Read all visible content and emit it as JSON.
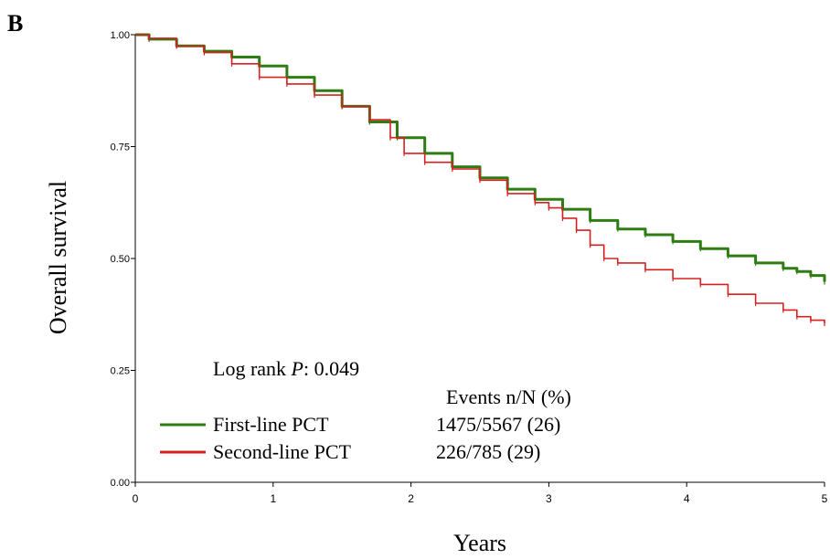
{
  "panel_label": "B",
  "chart_data": {
    "type": "line",
    "title": "",
    "xlabel": "Years",
    "ylabel": "Overall survival",
    "xlim": [
      0,
      5
    ],
    "ylim": [
      0,
      1
    ],
    "x_ticks": [
      "0",
      "1",
      "2",
      "3",
      "4",
      "5"
    ],
    "y_ticks": [
      "0.00",
      "0.25",
      "0.50",
      "0.75",
      "1.00"
    ],
    "grid": false,
    "annotation": {
      "prefix": "Log rank ",
      "p_symbol": "P",
      "suffix": ": 0.049"
    },
    "legend_header": "Events n/N (%)",
    "legend_placement": "lower-left",
    "series": [
      {
        "name": "First-line PCT",
        "events": "1475/5567 (26)",
        "color": "#2e7d12",
        "x": [
          0,
          0.1,
          0.3,
          0.5,
          0.7,
          0.9,
          1.1,
          1.3,
          1.5,
          1.7,
          1.9,
          2.1,
          2.3,
          2.5,
          2.7,
          2.9,
          3.1,
          3.3,
          3.5,
          3.7,
          3.9,
          4.1,
          4.3,
          4.5,
          4.7,
          4.8,
          4.9,
          5.0
        ],
        "y": [
          1.0,
          0.99,
          0.975,
          0.963,
          0.95,
          0.93,
          0.905,
          0.875,
          0.84,
          0.805,
          0.77,
          0.735,
          0.705,
          0.68,
          0.655,
          0.632,
          0.61,
          0.585,
          0.566,
          0.553,
          0.538,
          0.522,
          0.506,
          0.49,
          0.478,
          0.471,
          0.462,
          0.448
        ]
      },
      {
        "name": "Second-line PCT",
        "events": "226/785 (29)",
        "color": "#d62020",
        "x": [
          0,
          0.1,
          0.3,
          0.5,
          0.7,
          0.9,
          1.1,
          1.3,
          1.5,
          1.7,
          1.85,
          1.95,
          2.1,
          2.3,
          2.5,
          2.7,
          2.9,
          3.0,
          3.1,
          3.2,
          3.3,
          3.4,
          3.5,
          3.7,
          3.9,
          4.1,
          4.3,
          4.5,
          4.7,
          4.8,
          4.9,
          5.0
        ],
        "y": [
          1.0,
          0.992,
          0.975,
          0.96,
          0.935,
          0.905,
          0.89,
          0.865,
          0.84,
          0.81,
          0.77,
          0.735,
          0.715,
          0.7,
          0.675,
          0.645,
          0.625,
          0.613,
          0.59,
          0.563,
          0.53,
          0.5,
          0.49,
          0.475,
          0.455,
          0.442,
          0.42,
          0.4,
          0.385,
          0.37,
          0.362,
          0.355
        ]
      }
    ]
  }
}
